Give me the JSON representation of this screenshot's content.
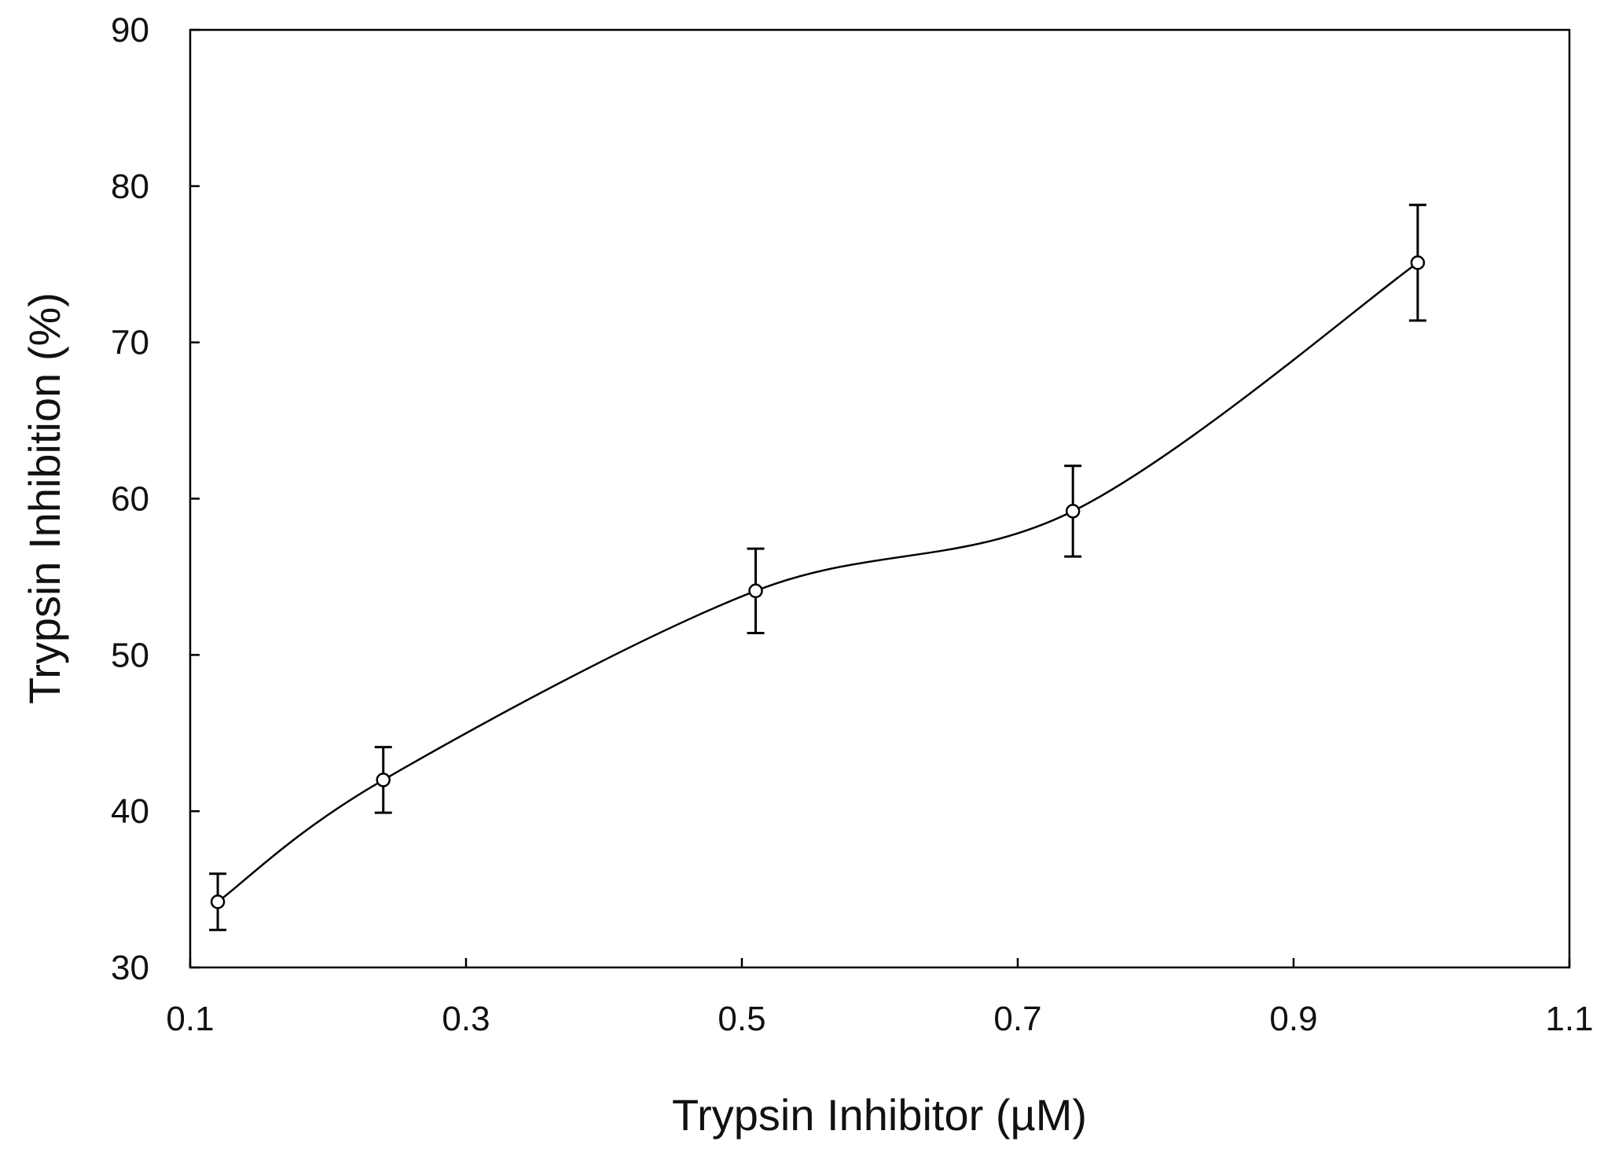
{
  "chart_data": {
    "type": "line",
    "title": "",
    "xlabel": "Trypsin Inhibitor (µM)",
    "ylabel": "Trypsin Inhibition (%)",
    "xlim": [
      0.1,
      1.1
    ],
    "ylim": [
      30,
      90
    ],
    "xticks": [
      0.1,
      0.3,
      0.5,
      0.7,
      0.9,
      1.1
    ],
    "xtick_labels": [
      "0.1",
      "0.3",
      "0.5",
      "0.7",
      "0.9",
      "1.1"
    ],
    "yticks": [
      30,
      40,
      50,
      60,
      70,
      80,
      90
    ],
    "ytick_labels": [
      "30",
      "40",
      "50",
      "60",
      "70",
      "80",
      "90"
    ],
    "grid": false,
    "legend": "none",
    "smooth": true,
    "marker": "open-circle",
    "line_color": "#000000",
    "series": [
      {
        "name": "Trypsin Inhibition",
        "x": [
          0.12,
          0.24,
          0.51,
          0.74,
          0.99
        ],
        "y": [
          34.2,
          42.0,
          54.1,
          59.2,
          75.1
        ],
        "error": [
          1.8,
          2.1,
          2.7,
          2.9,
          3.7
        ]
      }
    ]
  }
}
